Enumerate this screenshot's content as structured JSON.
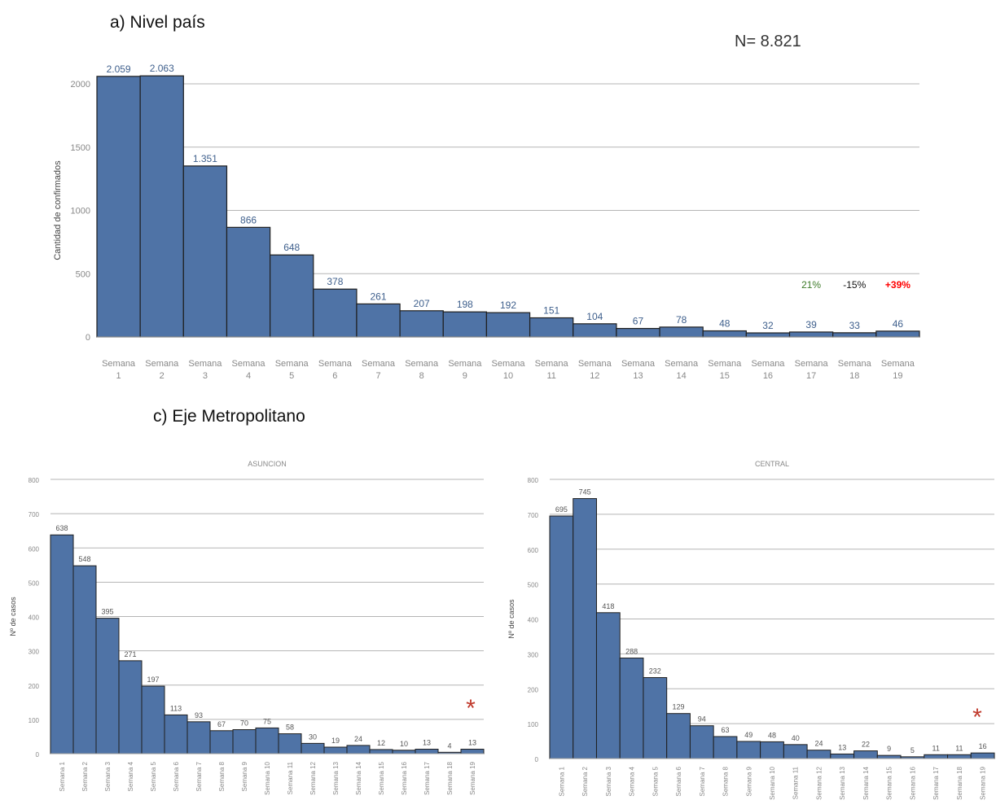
{
  "sections": {
    "a_title": "a)   Nivel país",
    "c_title": "c)   Eje Metropolitano"
  },
  "n_total": "N= 8.821",
  "colors": {
    "bar": "#4f73a6",
    "bar_stroke": "#1f1f1f",
    "pct_green": "#3c7a28",
    "pct_black": "#111111",
    "pct_red": "#ff0000",
    "asterisk": "#c0392b",
    "grid": "#b5b5b5",
    "axis_text": "#888888"
  },
  "chart_data": [
    {
      "type": "bar",
      "title": "",
      "ylabel": "Cantidad de confirmados",
      "ylim": [
        0,
        2000
      ],
      "yticks": [
        0,
        500,
        1000,
        1500,
        2000
      ],
      "categories": [
        "Semana 1",
        "Semana 2",
        "Semana 3",
        "Semana 4",
        "Semana 5",
        "Semana 6",
        "Semana 7",
        "Semana 8",
        "Semana 9",
        "Semana 10",
        "Semana 11",
        "Semana 12",
        "Semana 13",
        "Semana 14",
        "Semana 15",
        "Semana 16",
        "Semana 17",
        "Semana 18",
        "Semana 19"
      ],
      "values": [
        2059,
        2063,
        1351,
        866,
        648,
        378,
        261,
        207,
        198,
        192,
        151,
        104,
        67,
        78,
        48,
        32,
        39,
        33,
        46
      ],
      "data_labels": [
        "2.059",
        "2.063",
        "1.351",
        "866",
        "648",
        "378",
        "261",
        "207",
        "198",
        "192",
        "151",
        "104",
        "67",
        "78",
        "48",
        "32",
        "39",
        "33",
        "46"
      ],
      "annotations": [
        {
          "text": "21%",
          "category": "Semana 17",
          "color": "green"
        },
        {
          "text": "-15%",
          "category": "Semana 18",
          "color": "black"
        },
        {
          "text": "+39%",
          "category": "Semana 19",
          "color": "red"
        }
      ]
    },
    {
      "type": "bar",
      "title": "ASUNCION",
      "ylabel": "Nº de casos",
      "ylim": [
        0,
        800
      ],
      "yticks": [
        0,
        100,
        200,
        300,
        400,
        500,
        600,
        700,
        800
      ],
      "categories": [
        "Semana 1",
        "Semana 2",
        "Semana 3",
        "Semana 4",
        "Semana 5",
        "Semana 6",
        "Semana 7",
        "Semana 8",
        "Semana 9",
        "Semana 10",
        "Semana 11",
        "Semana 12",
        "Semana 13",
        "Semana 14",
        "Semana 15",
        "Semana 16",
        "Semana 17",
        "Semana 18",
        "Semana 19"
      ],
      "values": [
        638,
        548,
        395,
        271,
        197,
        113,
        93,
        67,
        70,
        75,
        58,
        30,
        19,
        24,
        12,
        10,
        13,
        4,
        13
      ],
      "data_labels": [
        "638",
        "548",
        "395",
        "271",
        "197",
        "113",
        "93",
        "67",
        "70",
        "75",
        "58",
        "30",
        "19",
        "24",
        "12",
        "10",
        "13",
        "4",
        "13"
      ],
      "marker": "*"
    },
    {
      "type": "bar",
      "title": "CENTRAL",
      "ylabel": "Nº de casos",
      "ylim": [
        0,
        800
      ],
      "yticks": [
        0,
        100,
        200,
        300,
        400,
        500,
        600,
        700,
        800
      ],
      "categories": [
        "Semana 1",
        "Semana 2",
        "Semana 3",
        "Semana 4",
        "Semana 5",
        "Semana 6",
        "Semana 7",
        "Semana 8",
        "Semana 9",
        "Semana 10",
        "Semana 11",
        "Semana 12",
        "Semana 13",
        "Semana 14",
        "Semana 15",
        "Semana 16",
        "Semana 17",
        "Semana 18",
        "Semana 19"
      ],
      "values": [
        695,
        745,
        418,
        288,
        232,
        129,
        94,
        63,
        49,
        48,
        40,
        24,
        13,
        22,
        9,
        5,
        11,
        11,
        16
      ],
      "data_labels": [
        "695",
        "745",
        "418",
        "288",
        "232",
        "129",
        "94",
        "63",
        "49",
        "48",
        "40",
        "24",
        "13",
        "22",
        "9",
        "5",
        "11",
        "11",
        "16"
      ],
      "marker": "*"
    }
  ]
}
